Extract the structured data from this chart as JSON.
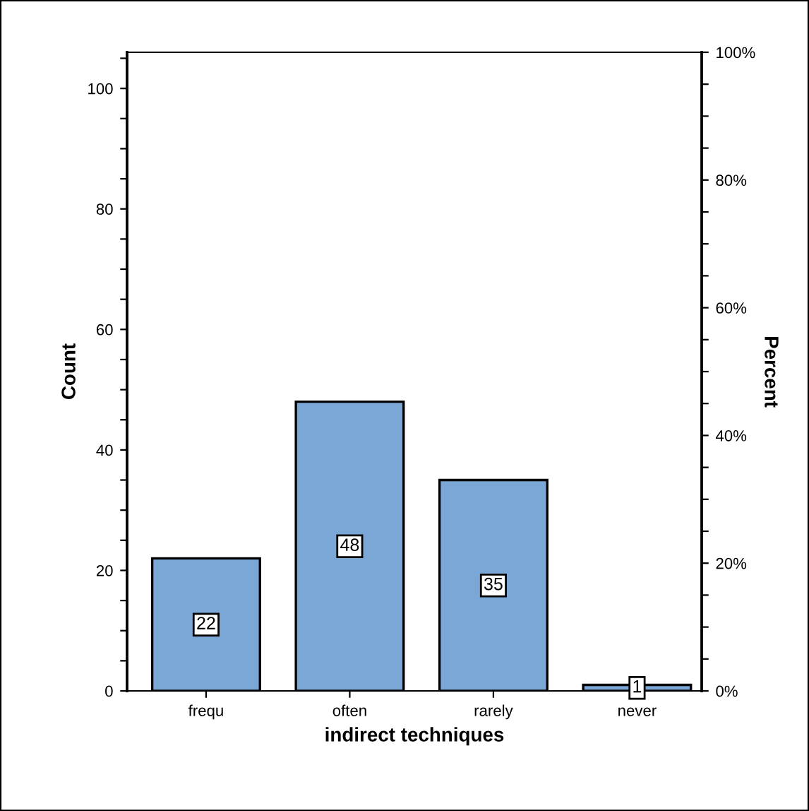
{
  "chart_data": {
    "type": "bar",
    "xlabel": "indirect techniques",
    "ylabel": "Count",
    "y2label": "Percent",
    "categories": [
      "frequ",
      "often",
      "rarely",
      "never"
    ],
    "values": [
      22,
      48,
      35,
      1
    ],
    "color": "#7ba7d6",
    "data_labels": true,
    "grid": false,
    "legend": false,
    "ylim": [
      0,
      106
    ],
    "yticks": [
      0,
      {
        "value": 5,
        "label": null
      },
      {
        "value": 10,
        "label": null
      },
      {
        "value": 15,
        "label": null
      },
      20,
      {
        "value": 25,
        "label": null
      },
      {
        "value": 30,
        "label": null
      },
      {
        "value": 35,
        "label": null
      },
      40,
      {
        "value": 45,
        "label": null
      },
      {
        "value": 50,
        "label": null
      },
      {
        "value": 55,
        "label": null
      },
      60,
      {
        "value": 65,
        "label": null
      },
      {
        "value": 70,
        "label": null
      },
      {
        "value": 75,
        "label": null
      },
      80,
      {
        "value": 85,
        "label": null
      },
      {
        "value": 90,
        "label": null
      },
      {
        "value": 95,
        "label": null
      },
      100,
      {
        "value": 105,
        "label": null
      }
    ],
    "y2lim": [
      0,
      100
    ],
    "y2ticks": [
      {
        "value": 0,
        "label": "0%"
      },
      {
        "value": 5,
        "label": null
      },
      {
        "value": 10,
        "label": null
      },
      {
        "value": 15,
        "label": null
      },
      {
        "value": 20,
        "label": "20%"
      },
      {
        "value": 25,
        "label": null
      },
      {
        "value": 30,
        "label": null
      },
      {
        "value": 35,
        "label": null
      },
      {
        "value": 40,
        "label": "40%"
      },
      {
        "value": 45,
        "label": null
      },
      {
        "value": 50,
        "label": null
      },
      {
        "value": 55,
        "label": null
      },
      {
        "value": 60,
        "label": "60%"
      },
      {
        "value": 65,
        "label": null
      },
      {
        "value": 70,
        "label": null
      },
      {
        "value": 75,
        "label": null
      },
      {
        "value": 80,
        "label": "80%"
      },
      {
        "value": 85,
        "label": null
      },
      {
        "value": 90,
        "label": null
      },
      {
        "value": 95,
        "label": null
      },
      {
        "value": 100,
        "label": "100%"
      }
    ]
  }
}
